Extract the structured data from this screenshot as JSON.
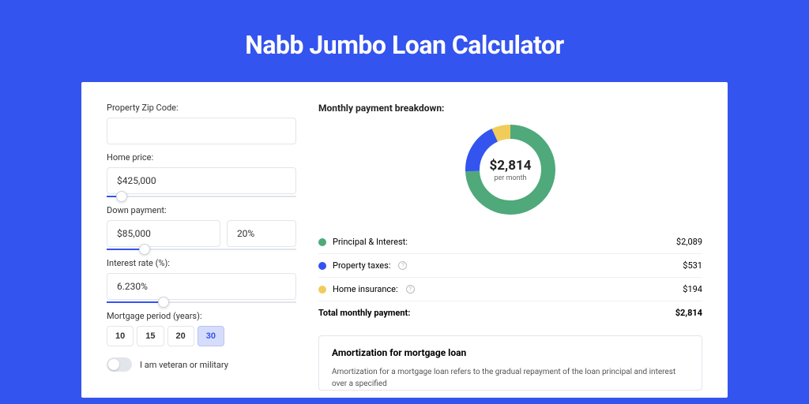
{
  "title": "Nabb Jumbo Loan Calculator",
  "colors": {
    "background": "#3454ef",
    "card_bg": "#ffffff",
    "border": "#e2e5ea",
    "text": "#333333",
    "accent": "#3454ef"
  },
  "form": {
    "zip": {
      "label": "Property Zip Code:",
      "value": ""
    },
    "home_price": {
      "label": "Home price:",
      "value": "$425,000",
      "slider_pct": 8
    },
    "down_payment": {
      "label": "Down payment:",
      "value": "$85,000",
      "pct": "20%",
      "slider_pct": 20
    },
    "interest_rate": {
      "label": "Interest rate (%):",
      "value": "6.230%",
      "slider_pct": 30
    },
    "mortgage_period": {
      "label": "Mortgage period (years):",
      "options": [
        "10",
        "15",
        "20",
        "30"
      ],
      "selected": "30"
    },
    "veteran": {
      "label": "I am veteran or military",
      "checked": false
    }
  },
  "breakdown": {
    "title": "Monthly payment breakdown:",
    "donut": {
      "amount": "$2,814",
      "sub": "per month",
      "slices": [
        {
          "label": "Principal & Interest",
          "value": 2089,
          "pct": 74.2,
          "color": "#4fa97a"
        },
        {
          "label": "Property taxes",
          "value": 531,
          "pct": 18.9,
          "color": "#3454ef"
        },
        {
          "label": "Home insurance",
          "value": 194,
          "pct": 6.9,
          "color": "#f1cc5a"
        }
      ],
      "stroke_width": 18
    },
    "rows": [
      {
        "label": "Principal & Interest:",
        "value": "$2,089",
        "color": "#4fa97a",
        "info": false
      },
      {
        "label": "Property taxes:",
        "value": "$531",
        "color": "#3454ef",
        "info": true
      },
      {
        "label": "Home insurance:",
        "value": "$194",
        "color": "#f1cc5a",
        "info": true
      }
    ],
    "total": {
      "label": "Total monthly payment:",
      "value": "$2,814"
    }
  },
  "amortization": {
    "title": "Amortization for mortgage loan",
    "text": "Amortization for a mortgage loan refers to the gradual repayment of the loan principal and interest over a specified"
  }
}
